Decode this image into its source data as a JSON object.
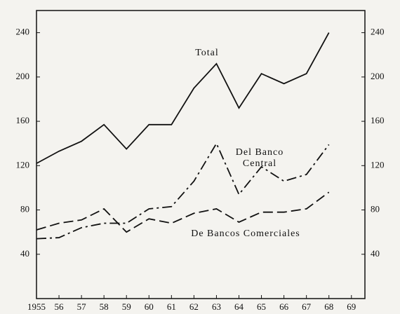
{
  "chart_data": {
    "type": "line",
    "x": [
      1955,
      1956,
      1957,
      1958,
      1959,
      1960,
      1961,
      1962,
      1963,
      1964,
      1965,
      1966,
      1967,
      1968
    ],
    "series": [
      {
        "name": "Total",
        "color": "#111111",
        "dash": "solid",
        "values": [
          122,
          133,
          142,
          157,
          135,
          157,
          157,
          190,
          212,
          172,
          203,
          194,
          203,
          240
        ]
      },
      {
        "name": "Del Banco Central",
        "color": "#111111",
        "dash": "dashdot",
        "values": [
          54,
          55,
          64,
          68,
          68,
          81,
          83,
          106,
          140,
          94,
          119,
          106,
          112,
          139
        ]
      },
      {
        "name": "De Bancos Comerciales",
        "color": "#111111",
        "dash": "dashed",
        "values": [
          62,
          68,
          71,
          81,
          60,
          72,
          68,
          77,
          81,
          69,
          78,
          78,
          81,
          96
        ]
      }
    ],
    "xlim": [
      1955,
      1969.6
    ],
    "xticks": [
      1955,
      {
        "value": 1956,
        "label": "56"
      },
      {
        "value": 1957,
        "label": "57"
      },
      {
        "value": 1958,
        "label": "58"
      },
      {
        "value": 1959,
        "label": "59"
      },
      {
        "value": 1960,
        "label": "60"
      },
      {
        "value": 1961,
        "label": "61"
      },
      {
        "value": 1962,
        "label": "62"
      },
      {
        "value": 1963,
        "label": "63"
      },
      {
        "value": 1964,
        "label": "64"
      },
      {
        "value": 1965,
        "label": "65"
      },
      {
        "value": 1966,
        "label": "66"
      },
      {
        "value": 1967,
        "label": "67"
      },
      {
        "value": 1968,
        "label": "68"
      },
      {
        "value": 1969,
        "label": "69"
      }
    ],
    "ylim": [
      0,
      260
    ],
    "yticks": [
      40,
      80,
      120,
      160,
      200,
      240
    ],
    "y2lim": [
      0,
      260
    ],
    "y2ticks": [
      40,
      80,
      120,
      160,
      200,
      240
    ],
    "grid": false
  }
}
